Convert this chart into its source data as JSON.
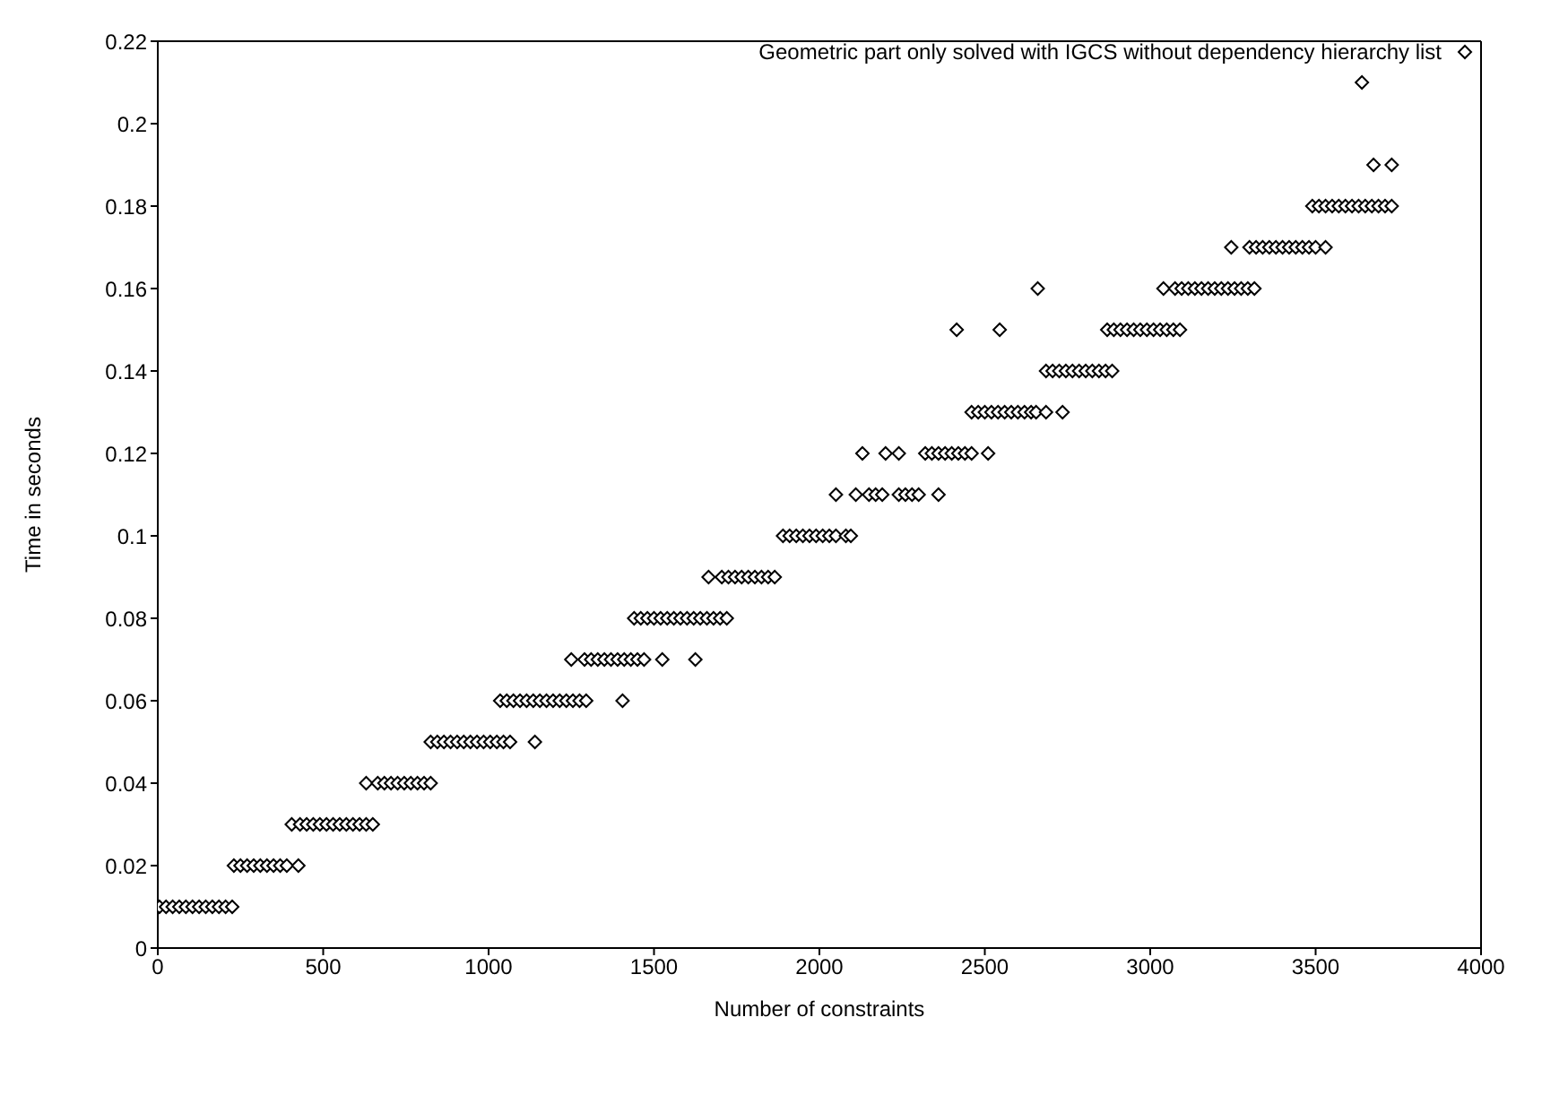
{
  "chart_data": {
    "type": "scatter",
    "xlabel": "Number of constraints",
    "ylabel": "Time in seconds",
    "xlim": [
      0,
      4000
    ],
    "xticks": [
      0,
      500,
      1000,
      1500,
      2000,
      2500,
      3000,
      3500,
      4000
    ],
    "ylim": [
      0,
      0.22
    ],
    "yticks": [
      0,
      0.02,
      0.04,
      0.06,
      0.08,
      0.1,
      0.12,
      0.14,
      0.16,
      0.18,
      0.2,
      0.22
    ],
    "grid": false,
    "legend": "top right",
    "marker": "diamond",
    "series": [
      {
        "name": "Geometric part only solved with IGCS without dependency hierarchy list",
        "color": "#000000",
        "x": [
          5,
          25,
          45,
          65,
          85,
          105,
          125,
          145,
          165,
          185,
          205,
          225,
          230,
          250,
          270,
          290,
          310,
          330,
          350,
          370,
          390,
          425,
          405,
          430,
          450,
          470,
          490,
          510,
          530,
          550,
          570,
          590,
          610,
          630,
          650,
          630,
          665,
          685,
          705,
          725,
          745,
          765,
          785,
          805,
          825,
          825,
          845,
          865,
          885,
          905,
          925,
          945,
          965,
          985,
          1005,
          1025,
          1045,
          1065,
          1140,
          1035,
          1055,
          1075,
          1095,
          1115,
          1135,
          1155,
          1175,
          1195,
          1215,
          1235,
          1255,
          1275,
          1295,
          1405,
          1250,
          1290,
          1310,
          1330,
          1350,
          1370,
          1390,
          1410,
          1430,
          1450,
          1470,
          1525,
          1625,
          1440,
          1460,
          1480,
          1500,
          1520,
          1540,
          1560,
          1580,
          1600,
          1620,
          1640,
          1660,
          1680,
          1700,
          1720,
          1665,
          1705,
          1725,
          1745,
          1765,
          1785,
          1805,
          1825,
          1845,
          1865,
          1890,
          1910,
          1930,
          1950,
          1970,
          1990,
          2010,
          2030,
          2050,
          2080,
          2095,
          2050,
          2110,
          2150,
          2170,
          2190,
          2240,
          2260,
          2280,
          2300,
          2360,
          2130,
          2200,
          2240,
          2320,
          2340,
          2360,
          2380,
          2400,
          2420,
          2440,
          2460,
          2510,
          2460,
          2480,
          2500,
          2520,
          2540,
          2560,
          2580,
          2600,
          2620,
          2640,
          2655,
          2685,
          2735,
          2685,
          2705,
          2725,
          2745,
          2765,
          2785,
          2805,
          2825,
          2845,
          2865,
          2885,
          2415,
          2545,
          2870,
          2890,
          2910,
          2930,
          2950,
          2970,
          2990,
          3010,
          3030,
          3050,
          3070,
          3090,
          2660,
          3040,
          3075,
          3095,
          3115,
          3135,
          3155,
          3175,
          3195,
          3215,
          3235,
          3255,
          3275,
          3295,
          3315,
          3245,
          3300,
          3320,
          3340,
          3360,
          3380,
          3400,
          3420,
          3440,
          3460,
          3480,
          3500,
          3530,
          3490,
          3510,
          3530,
          3550,
          3570,
          3590,
          3610,
          3630,
          3650,
          3670,
          3690,
          3710,
          3730,
          3675,
          3730,
          3640
        ],
        "values": [
          0.01,
          0.01,
          0.01,
          0.01,
          0.01,
          0.01,
          0.01,
          0.01,
          0.01,
          0.01,
          0.01,
          0.01,
          0.02,
          0.02,
          0.02,
          0.02,
          0.02,
          0.02,
          0.02,
          0.02,
          0.02,
          0.02,
          0.03,
          0.03,
          0.03,
          0.03,
          0.03,
          0.03,
          0.03,
          0.03,
          0.03,
          0.03,
          0.03,
          0.03,
          0.03,
          0.04,
          0.04,
          0.04,
          0.04,
          0.04,
          0.04,
          0.04,
          0.04,
          0.04,
          0.04,
          0.05,
          0.05,
          0.05,
          0.05,
          0.05,
          0.05,
          0.05,
          0.05,
          0.05,
          0.05,
          0.05,
          0.05,
          0.05,
          0.05,
          0.06,
          0.06,
          0.06,
          0.06,
          0.06,
          0.06,
          0.06,
          0.06,
          0.06,
          0.06,
          0.06,
          0.06,
          0.06,
          0.06,
          0.06,
          0.07,
          0.07,
          0.07,
          0.07,
          0.07,
          0.07,
          0.07,
          0.07,
          0.07,
          0.07,
          0.07,
          0.07,
          0.07,
          0.08,
          0.08,
          0.08,
          0.08,
          0.08,
          0.08,
          0.08,
          0.08,
          0.08,
          0.08,
          0.08,
          0.08,
          0.08,
          0.08,
          0.08,
          0.09,
          0.09,
          0.09,
          0.09,
          0.09,
          0.09,
          0.09,
          0.09,
          0.09,
          0.09,
          0.1,
          0.1,
          0.1,
          0.1,
          0.1,
          0.1,
          0.1,
          0.1,
          0.1,
          0.1,
          0.1,
          0.11,
          0.11,
          0.11,
          0.11,
          0.11,
          0.11,
          0.11,
          0.11,
          0.11,
          0.11,
          0.12,
          0.12,
          0.12,
          0.12,
          0.12,
          0.12,
          0.12,
          0.12,
          0.12,
          0.12,
          0.12,
          0.12,
          0.13,
          0.13,
          0.13,
          0.13,
          0.13,
          0.13,
          0.13,
          0.13,
          0.13,
          0.13,
          0.13,
          0.13,
          0.13,
          0.14,
          0.14,
          0.14,
          0.14,
          0.14,
          0.14,
          0.14,
          0.14,
          0.14,
          0.14,
          0.14,
          0.15,
          0.15,
          0.15,
          0.15,
          0.15,
          0.15,
          0.15,
          0.15,
          0.15,
          0.15,
          0.15,
          0.15,
          0.15,
          0.15,
          0.16,
          0.16,
          0.16,
          0.16,
          0.16,
          0.16,
          0.16,
          0.16,
          0.16,
          0.16,
          0.16,
          0.16,
          0.16,
          0.16,
          0.16,
          0.17,
          0.17,
          0.17,
          0.17,
          0.17,
          0.17,
          0.17,
          0.17,
          0.17,
          0.17,
          0.17,
          0.17,
          0.17,
          0.18,
          0.18,
          0.18,
          0.18,
          0.18,
          0.18,
          0.18,
          0.18,
          0.18,
          0.18,
          0.18,
          0.18,
          0.18,
          0.19,
          0.19,
          0.21
        ]
      }
    ]
  }
}
